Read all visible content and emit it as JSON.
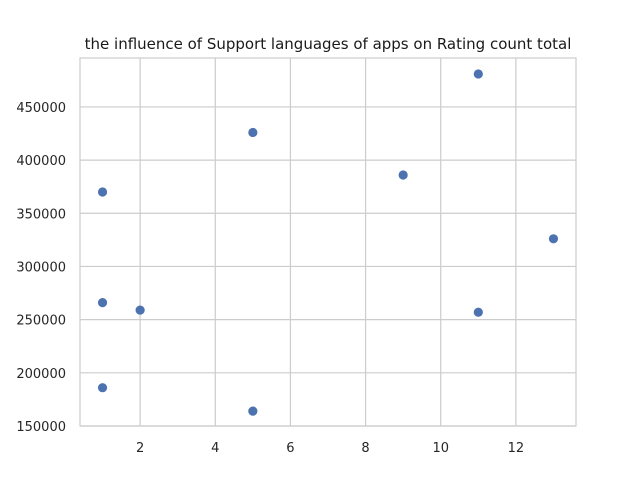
{
  "chart_data": {
    "type": "scatter",
    "title": "the influence of Support languages of apps on Rating count total",
    "xlabel": "",
    "ylabel": "",
    "xlim": [
      0.4,
      13.6
    ],
    "ylim": [
      150000,
      496000
    ],
    "xticks": [
      2,
      4,
      6,
      8,
      10,
      12
    ],
    "yticks": [
      150000,
      200000,
      250000,
      300000,
      350000,
      400000,
      450000
    ],
    "grid": true,
    "color": "#4c72b0",
    "points": [
      {
        "x": 1,
        "y": 370000
      },
      {
        "x": 1,
        "y": 266000
      },
      {
        "x": 1,
        "y": 186000
      },
      {
        "x": 2,
        "y": 259000
      },
      {
        "x": 5,
        "y": 426000
      },
      {
        "x": 5,
        "y": 164000
      },
      {
        "x": 9,
        "y": 386000
      },
      {
        "x": 11,
        "y": 481000
      },
      {
        "x": 11,
        "y": 257000
      },
      {
        "x": 13,
        "y": 326000
      }
    ]
  }
}
